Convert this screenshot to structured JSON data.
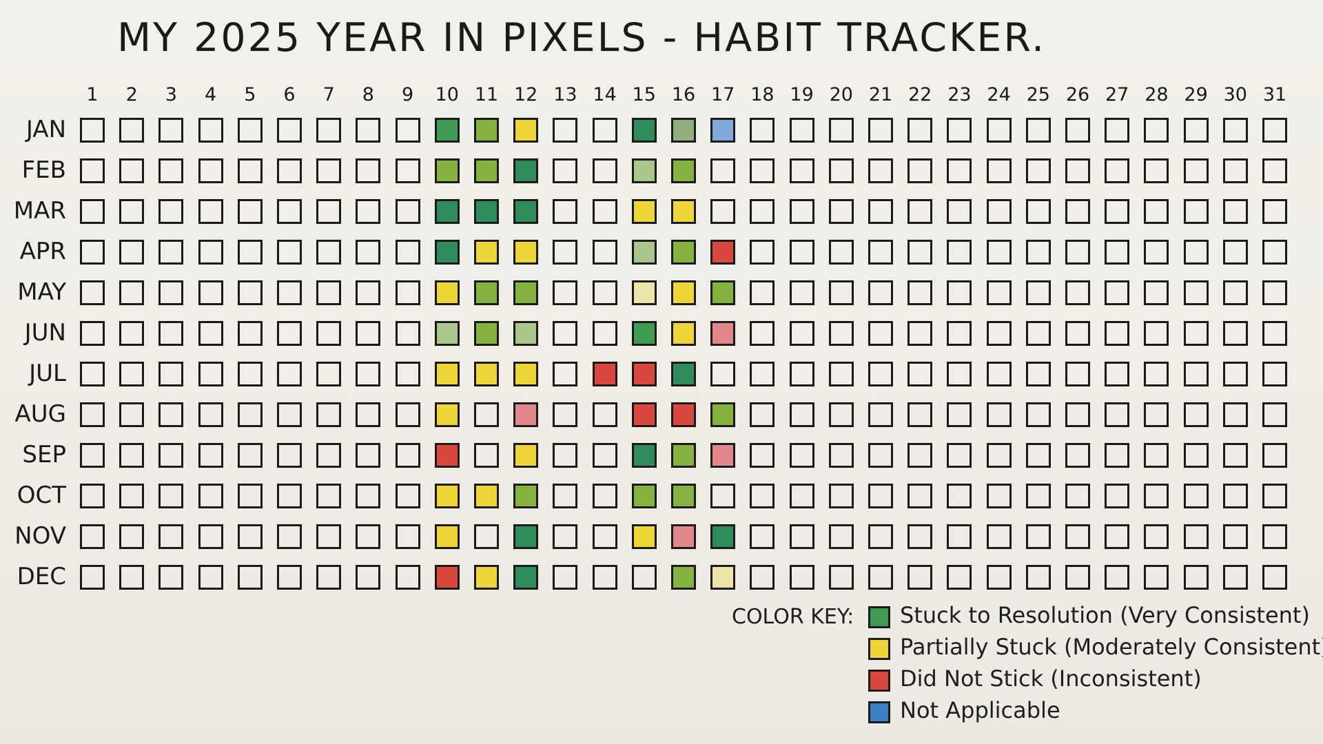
{
  "title": "MY 2025 YEAR IN PIXELS - HABIT TRACKER.",
  "days": [
    "1",
    "2",
    "3",
    "4",
    "5",
    "6",
    "7",
    "8",
    "9",
    "10",
    "11",
    "12",
    "13",
    "14",
    "15",
    "16",
    "17",
    "18",
    "19",
    "20",
    "21",
    "22",
    "23",
    "24",
    "25",
    "26",
    "27",
    "28",
    "29",
    "30",
    "31"
  ],
  "months": [
    {
      "label": "JAN",
      "cells": {
        "10": "green",
        "11": "lime",
        "12": "yellow",
        "15": "teal",
        "16": "sage",
        "17": "blue"
      }
    },
    {
      "label": "FEB",
      "cells": {
        "10": "lime",
        "11": "lime",
        "12": "teal",
        "15": "pale-g",
        "16": "lime"
      }
    },
    {
      "label": "MAR",
      "cells": {
        "10": "teal",
        "11": "teal",
        "12": "teal",
        "15": "yellow",
        "16": "yellow"
      }
    },
    {
      "label": "APR",
      "cells": {
        "10": "teal",
        "11": "yellow",
        "12": "yellow",
        "15": "pale-g",
        "16": "lime",
        "17": "red"
      }
    },
    {
      "label": "MAY",
      "cells": {
        "10": "yellow",
        "11": "lime",
        "12": "lime",
        "15": "pale-y",
        "16": "yellow",
        "17": "lime"
      }
    },
    {
      "label": "JUN",
      "cells": {
        "10": "pale-g",
        "11": "lime",
        "12": "pale-g",
        "15": "green",
        "16": "yellow",
        "17": "pale-r"
      }
    },
    {
      "label": "JUL",
      "cells": {
        "10": "yellow",
        "11": "yellow",
        "12": "yellow",
        "14": "red",
        "15": "red",
        "16": "teal"
      }
    },
    {
      "label": "AUG",
      "cells": {
        "10": "yellow",
        "12": "pale-r",
        "15": "red",
        "16": "red",
        "17": "lime"
      }
    },
    {
      "label": "SEP",
      "cells": {
        "10": "red",
        "12": "yellow",
        "15": "teal",
        "16": "lime",
        "17": "pale-r"
      }
    },
    {
      "label": "OCT",
      "cells": {
        "10": "yellow",
        "11": "yellow",
        "12": "lime",
        "15": "lime",
        "16": "lime"
      }
    },
    {
      "label": "NOV",
      "cells": {
        "10": "yellow",
        "12": "teal",
        "15": "yellow",
        "16": "pale-r",
        "17": "teal"
      }
    },
    {
      "label": "DEC",
      "cells": {
        "10": "red",
        "11": "yellow",
        "12": "teal",
        "16": "lime",
        "17": "pale-y"
      }
    }
  ],
  "key": {
    "label": "COLOR KEY:",
    "items": [
      {
        "text": "Stuck to Resolution (Very Consistent)",
        "color": "#3f9a52"
      },
      {
        "text": "Partially Stuck (Moderately Consistent)",
        "color": "#eed63a"
      },
      {
        "text": "Did Not Stick (Inconsistent)",
        "color": "#d9483f"
      },
      {
        "text": "Not Applicable",
        "color": "#3d7fc4"
      }
    ]
  }
}
